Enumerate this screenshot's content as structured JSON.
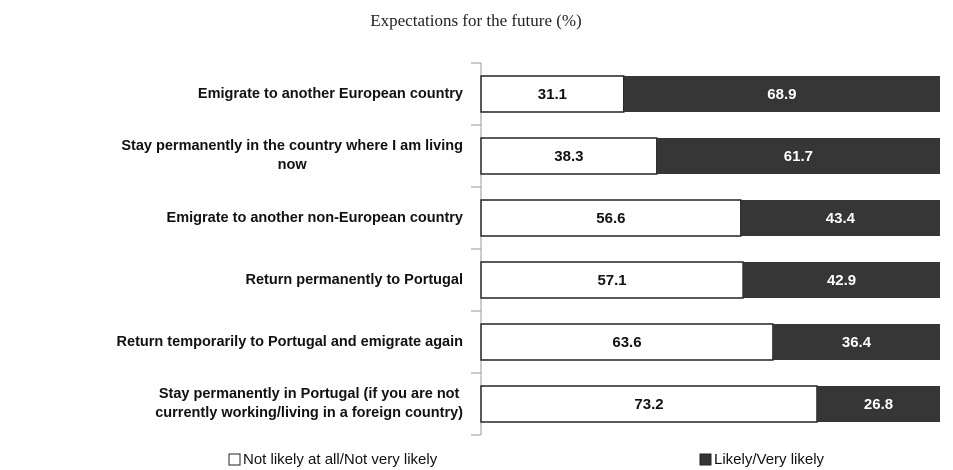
{
  "chart_data": {
    "type": "stacked_barh",
    "title": "Expectations for the future (%)",
    "categories": [
      "Emigrate to another European country",
      "Stay permanently in the country where I am living\nnow",
      "Emigrate to another non-European country",
      "Return permanently to Portugal",
      "Return temporarily to Portugal and emigrate again",
      "Stay permanently in Portugal (if you are not\ncurrently working/living in a foreign country)"
    ],
    "series": [
      {
        "name": "Not likely at all/Not very likely",
        "color": "#ffffff",
        "values": [
          31.1,
          38.3,
          56.6,
          57.1,
          63.6,
          73.2
        ]
      },
      {
        "name": "Likely/Very likely",
        "color": "#363636",
        "values": [
          68.9,
          61.7,
          43.4,
          42.9,
          36.4,
          26.8
        ]
      }
    ],
    "xlim": [
      0,
      100
    ]
  }
}
